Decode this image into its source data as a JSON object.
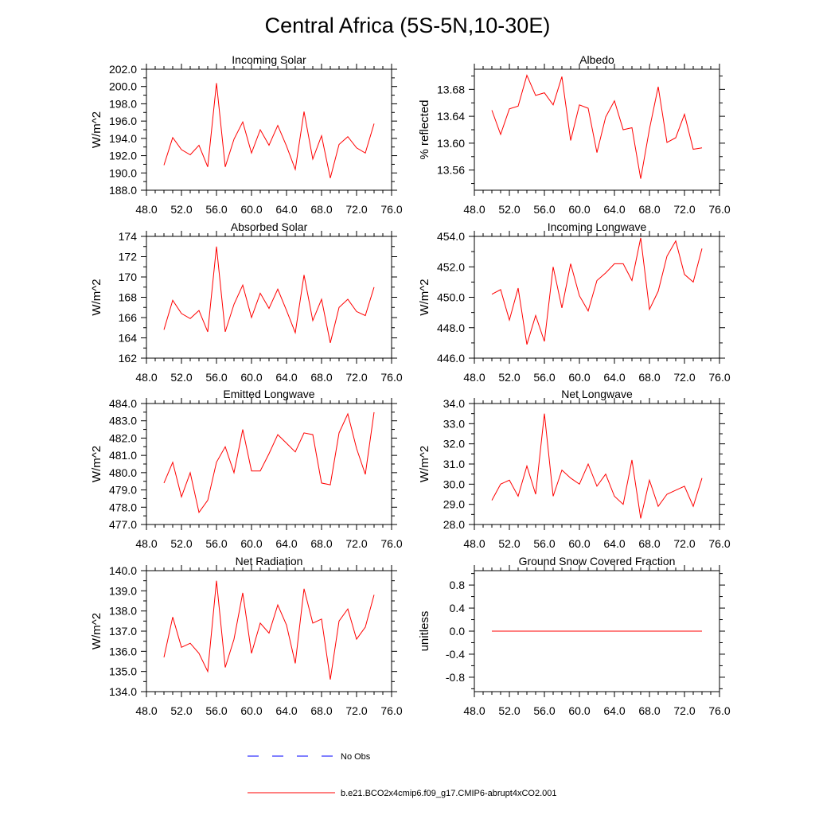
{
  "title": "Central Africa (5S-5N,10-30E)",
  "colors": {
    "model": "#ff0000",
    "obs": "#0000ff",
    "axis": "#000000"
  },
  "legend": {
    "obs_label": "No Obs",
    "model_label": "b.e21.BCO2x4cmip6.f09_g17.CMIP6-abrupt4xCO2.001"
  },
  "chart_data": [
    {
      "type": "line",
      "title": "Incoming Solar",
      "ylabel": "W/m^2",
      "xlabel": "",
      "xlim": [
        48,
        76
      ],
      "ylim": [
        188,
        202
      ],
      "xticks": [
        48,
        52,
        56,
        60,
        64,
        68,
        72,
        76
      ],
      "xticklabels": [
        "48.0",
        "52.0",
        "56.0",
        "60.0",
        "64.0",
        "68.0",
        "72.0",
        "76.0"
      ],
      "yticks": [
        188,
        190,
        192,
        194,
        196,
        198,
        200,
        202
      ],
      "yticklabels": [
        "188.0",
        "190.0",
        "192.0",
        "194.0",
        "196.0",
        "198.0",
        "200.0",
        "202.0"
      ],
      "series": [
        {
          "name": "b.e21.BCO2x4cmip6.f09_g17.CMIP6-abrupt4xCO2.001",
          "x": [
            50,
            51,
            52,
            53,
            54,
            55,
            56,
            57,
            58,
            59,
            60,
            61,
            62,
            63,
            64,
            65,
            66,
            67,
            68,
            69,
            70,
            71,
            72,
            73,
            74
          ],
          "values": [
            190.9,
            194.1,
            192.7,
            192.1,
            193.2,
            190.7,
            200.4,
            190.7,
            193.9,
            195.9,
            192.3,
            195.0,
            193.2,
            195.5,
            193.1,
            190.4,
            197.1,
            191.6,
            194.3,
            189.4,
            193.3,
            194.2,
            192.9,
            192.3,
            195.7
          ]
        }
      ],
      "grid": false
    },
    {
      "type": "line",
      "title": "Albedo",
      "ylabel": "% reflected",
      "xlabel": "",
      "xlim": [
        48,
        76
      ],
      "ylim": [
        13.53,
        13.71
      ],
      "xticks": [
        48,
        52,
        56,
        60,
        64,
        68,
        72,
        76
      ],
      "xticklabels": [
        "48.0",
        "52.0",
        "56.0",
        "60.0",
        "64.0",
        "68.0",
        "72.0",
        "76.0"
      ],
      "yticks": [
        13.56,
        13.6,
        13.64,
        13.68
      ],
      "yticklabels": [
        "13.56",
        "13.60",
        "13.64",
        "13.68"
      ],
      "series": [
        {
          "name": "b.e21.BCO2x4cmip6.f09_g17.CMIP6-abrupt4xCO2.001",
          "x": [
            50,
            51,
            52,
            53,
            54,
            55,
            56,
            57,
            58,
            59,
            60,
            61,
            62,
            63,
            64,
            65,
            66,
            67,
            68,
            69,
            70,
            71,
            72,
            73,
            74
          ],
          "values": [
            13.649,
            13.613,
            13.651,
            13.655,
            13.701,
            13.671,
            13.675,
            13.657,
            13.699,
            13.604,
            13.657,
            13.652,
            13.586,
            13.639,
            13.663,
            13.62,
            13.623,
            13.547,
            13.621,
            13.684,
            13.601,
            13.608,
            13.643,
            13.591,
            13.593
          ]
        }
      ],
      "grid": false
    },
    {
      "type": "line",
      "title": "Absorbed Solar",
      "ylabel": "W/m^2",
      "xlabel": "",
      "xlim": [
        48,
        76
      ],
      "ylim": [
        162,
        174
      ],
      "xticks": [
        48,
        52,
        56,
        60,
        64,
        68,
        72,
        76
      ],
      "xticklabels": [
        "48.0",
        "52.0",
        "56.0",
        "60.0",
        "64.0",
        "68.0",
        "72.0",
        "76.0"
      ],
      "yticks": [
        162,
        164,
        166,
        168,
        170,
        172,
        174
      ],
      "yticklabels": [
        "162",
        "164",
        "166",
        "168",
        "170",
        "172",
        "174"
      ],
      "series": [
        {
          "name": "b.e21.BCO2x4cmip6.f09_g17.CMIP6-abrupt4xCO2.001",
          "x": [
            50,
            51,
            52,
            53,
            54,
            55,
            56,
            57,
            58,
            59,
            60,
            61,
            62,
            63,
            64,
            65,
            66,
            67,
            68,
            69,
            70,
            71,
            72,
            73,
            74
          ],
          "values": [
            164.8,
            167.7,
            166.4,
            165.9,
            166.7,
            164.6,
            173.0,
            164.6,
            167.3,
            169.2,
            166.0,
            168.4,
            166.9,
            168.8,
            166.7,
            164.5,
            170.2,
            165.7,
            167.8,
            163.5,
            167.0,
            167.8,
            166.6,
            166.2,
            169.0
          ]
        }
      ],
      "grid": false
    },
    {
      "type": "line",
      "title": "Incoming Longwave",
      "ylabel": "W/m^2",
      "xlabel": "",
      "xlim": [
        48,
        76
      ],
      "ylim": [
        446,
        454
      ],
      "xticks": [
        48,
        52,
        56,
        60,
        64,
        68,
        72,
        76
      ],
      "xticklabels": [
        "48.0",
        "52.0",
        "56.0",
        "60.0",
        "64.0",
        "68.0",
        "72.0",
        "76.0"
      ],
      "yticks": [
        446,
        448,
        450,
        452,
        454
      ],
      "yticklabels": [
        "446.0",
        "448.0",
        "450.0",
        "452.0",
        "454.0"
      ],
      "series": [
        {
          "name": "b.e21.BCO2x4cmip6.f09_g17.CMIP6-abrupt4xCO2.001",
          "x": [
            50,
            51,
            52,
            53,
            54,
            55,
            56,
            57,
            58,
            59,
            60,
            61,
            62,
            63,
            64,
            65,
            66,
            67,
            68,
            69,
            70,
            71,
            72,
            73,
            74
          ],
          "values": [
            450.2,
            450.5,
            448.5,
            450.6,
            446.9,
            448.8,
            447.1,
            452.0,
            449.3,
            452.2,
            450.1,
            449.1,
            451.1,
            451.6,
            452.2,
            452.2,
            451.1,
            453.9,
            449.2,
            450.4,
            452.7,
            453.7,
            451.5,
            451.0,
            453.2
          ]
        }
      ],
      "grid": false
    },
    {
      "type": "line",
      "title": "Emitted Longwave",
      "ylabel": "W/m^2",
      "xlabel": "",
      "xlim": [
        48,
        76
      ],
      "ylim": [
        477,
        484
      ],
      "xticks": [
        48,
        52,
        56,
        60,
        64,
        68,
        72,
        76
      ],
      "xticklabels": [
        "48.0",
        "52.0",
        "56.0",
        "60.0",
        "64.0",
        "68.0",
        "72.0",
        "76.0"
      ],
      "yticks": [
        477,
        478,
        479,
        480,
        481,
        482,
        483,
        484
      ],
      "yticklabels": [
        "477.0",
        "478.0",
        "479.0",
        "480.0",
        "481.0",
        "482.0",
        "483.0",
        "484.0"
      ],
      "series": [
        {
          "name": "b.e21.BCO2x4cmip6.f09_g17.CMIP6-abrupt4xCO2.001",
          "x": [
            50,
            51,
            52,
            53,
            54,
            55,
            56,
            57,
            58,
            59,
            60,
            61,
            62,
            63,
            64,
            65,
            66,
            67,
            68,
            69,
            70,
            71,
            72,
            73,
            74
          ],
          "values": [
            479.4,
            480.6,
            478.6,
            480.0,
            477.7,
            478.4,
            480.6,
            481.5,
            480.0,
            482.5,
            480.1,
            480.1,
            481.1,
            482.2,
            481.7,
            481.2,
            482.3,
            482.2,
            479.4,
            479.3,
            482.3,
            483.4,
            481.4,
            479.9,
            483.5
          ]
        }
      ],
      "grid": false
    },
    {
      "type": "line",
      "title": "Net Longwave",
      "ylabel": "W/m^2",
      "xlabel": "",
      "xlim": [
        48,
        76
      ],
      "ylim": [
        28,
        34
      ],
      "xticks": [
        48,
        52,
        56,
        60,
        64,
        68,
        72,
        76
      ],
      "xticklabels": [
        "48.0",
        "52.0",
        "56.0",
        "60.0",
        "64.0",
        "68.0",
        "72.0",
        "76.0"
      ],
      "yticks": [
        28,
        29,
        30,
        31,
        32,
        33,
        34
      ],
      "yticklabels": [
        "28.0",
        "29.0",
        "30.0",
        "31.0",
        "32.0",
        "33.0",
        "34.0"
      ],
      "series": [
        {
          "name": "b.e21.BCO2x4cmip6.f09_g17.CMIP6-abrupt4xCO2.001",
          "x": [
            50,
            51,
            52,
            53,
            54,
            55,
            56,
            57,
            58,
            59,
            60,
            61,
            62,
            63,
            64,
            65,
            66,
            67,
            68,
            69,
            70,
            71,
            72,
            73,
            74
          ],
          "values": [
            29.2,
            30.0,
            30.2,
            29.4,
            30.9,
            29.5,
            33.5,
            29.4,
            30.7,
            30.3,
            30.0,
            31.0,
            29.9,
            30.5,
            29.4,
            29.0,
            31.2,
            28.3,
            30.2,
            28.9,
            29.5,
            29.7,
            29.9,
            28.9,
            30.3
          ]
        }
      ],
      "grid": false
    },
    {
      "type": "line",
      "title": "Net Radiation",
      "ylabel": "W/m^2",
      "xlabel": "",
      "xlim": [
        48,
        76
      ],
      "ylim": [
        134,
        140
      ],
      "xticks": [
        48,
        52,
        56,
        60,
        64,
        68,
        72,
        76
      ],
      "xticklabels": [
        "48.0",
        "52.0",
        "56.0",
        "60.0",
        "64.0",
        "68.0",
        "72.0",
        "76.0"
      ],
      "yticks": [
        134,
        135,
        136,
        137,
        138,
        139,
        140
      ],
      "yticklabels": [
        "134.0",
        "135.0",
        "136.0",
        "137.0",
        "138.0",
        "139.0",
        "140.0"
      ],
      "series": [
        {
          "name": "b.e21.BCO2x4cmip6.f09_g17.CMIP6-abrupt4xCO2.001",
          "x": [
            50,
            51,
            52,
            53,
            54,
            55,
            56,
            57,
            58,
            59,
            60,
            61,
            62,
            63,
            64,
            65,
            66,
            67,
            68,
            69,
            70,
            71,
            72,
            73,
            74
          ],
          "values": [
            135.7,
            137.7,
            136.2,
            136.4,
            135.9,
            135.0,
            139.5,
            135.2,
            136.6,
            138.9,
            135.9,
            137.4,
            136.9,
            138.3,
            137.3,
            135.4,
            139.1,
            137.4,
            137.6,
            134.6,
            137.5,
            138.1,
            136.6,
            137.2,
            138.8
          ]
        }
      ],
      "grid": false
    },
    {
      "type": "line",
      "title": "Ground Snow Covered Fraction",
      "ylabel": "unitless",
      "xlabel": "",
      "xlim": [
        48,
        76
      ],
      "ylim": [
        -1.05,
        1.05
      ],
      "xticks": [
        48,
        52,
        56,
        60,
        64,
        68,
        72,
        76
      ],
      "xticklabels": [
        "48.0",
        "52.0",
        "56.0",
        "60.0",
        "64.0",
        "68.0",
        "72.0",
        "76.0"
      ],
      "yticks": [
        -0.8,
        -0.4,
        0.0,
        0.4,
        0.8
      ],
      "yticklabels": [
        "-0.8",
        "-0.4",
        "0.0",
        "0.4",
        "0.8"
      ],
      "series": [
        {
          "name": "b.e21.BCO2x4cmip6.f09_g17.CMIP6-abrupt4xCO2.001",
          "x": [
            50,
            51,
            52,
            53,
            54,
            55,
            56,
            57,
            58,
            59,
            60,
            61,
            62,
            63,
            64,
            65,
            66,
            67,
            68,
            69,
            70,
            71,
            72,
            73,
            74
          ],
          "values": [
            0,
            0,
            0,
            0,
            0,
            0,
            0,
            0,
            0,
            0,
            0,
            0,
            0,
            0,
            0,
            0,
            0,
            0,
            0,
            0,
            0,
            0,
            0,
            0,
            0
          ]
        }
      ],
      "grid": false
    }
  ]
}
